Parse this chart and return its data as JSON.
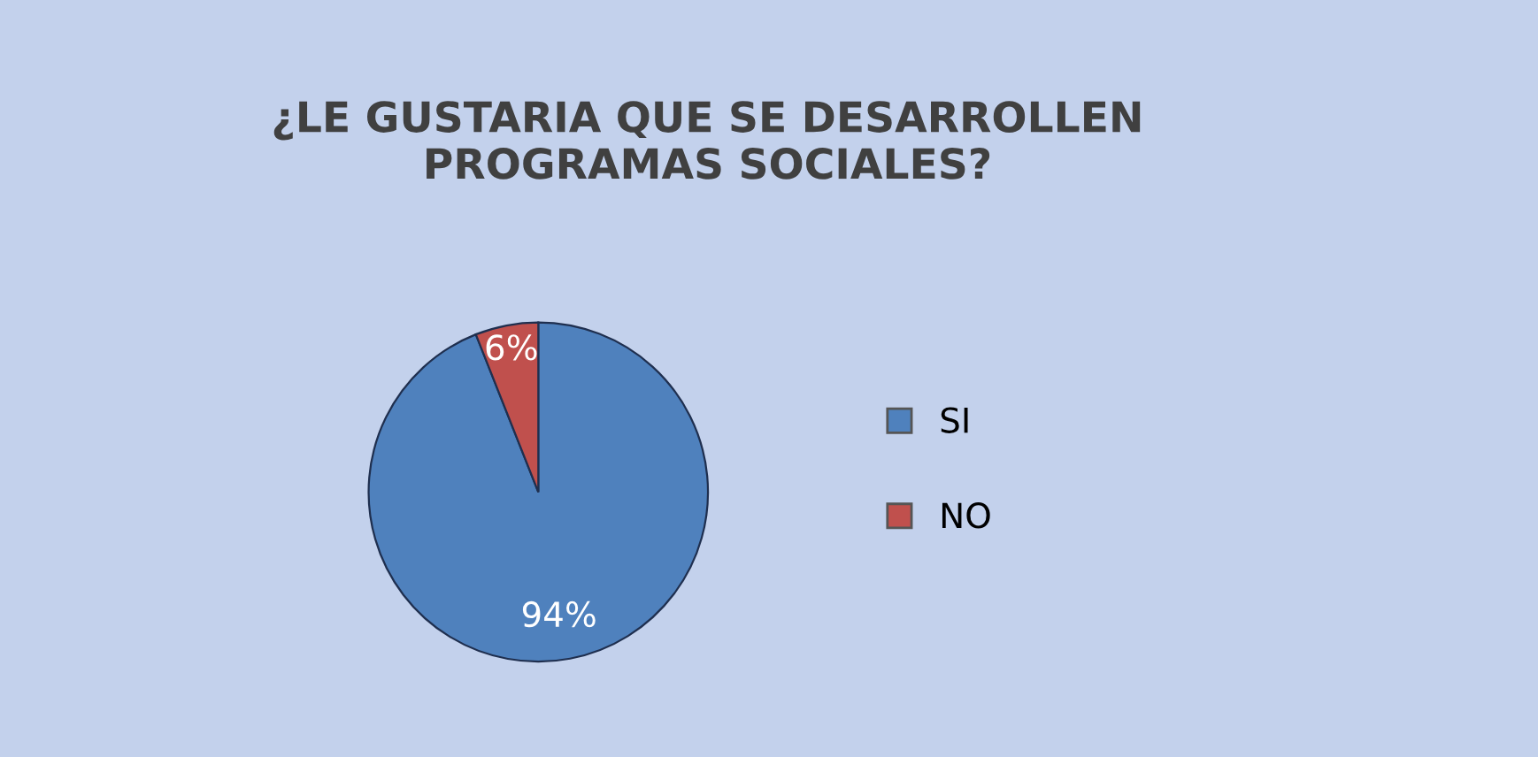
{
  "chart_data": {
    "type": "pie",
    "title": "¿LE GUSTARIA QUE SE DESARROLLEN\nPROGRAMAS SOCIALES?",
    "categories": [
      "SI",
      "NO"
    ],
    "values": [
      94,
      6
    ],
    "colors": [
      "#4f81bd",
      "#c0504d"
    ],
    "value_labels": [
      "94%",
      "6%"
    ],
    "legend": "right"
  }
}
